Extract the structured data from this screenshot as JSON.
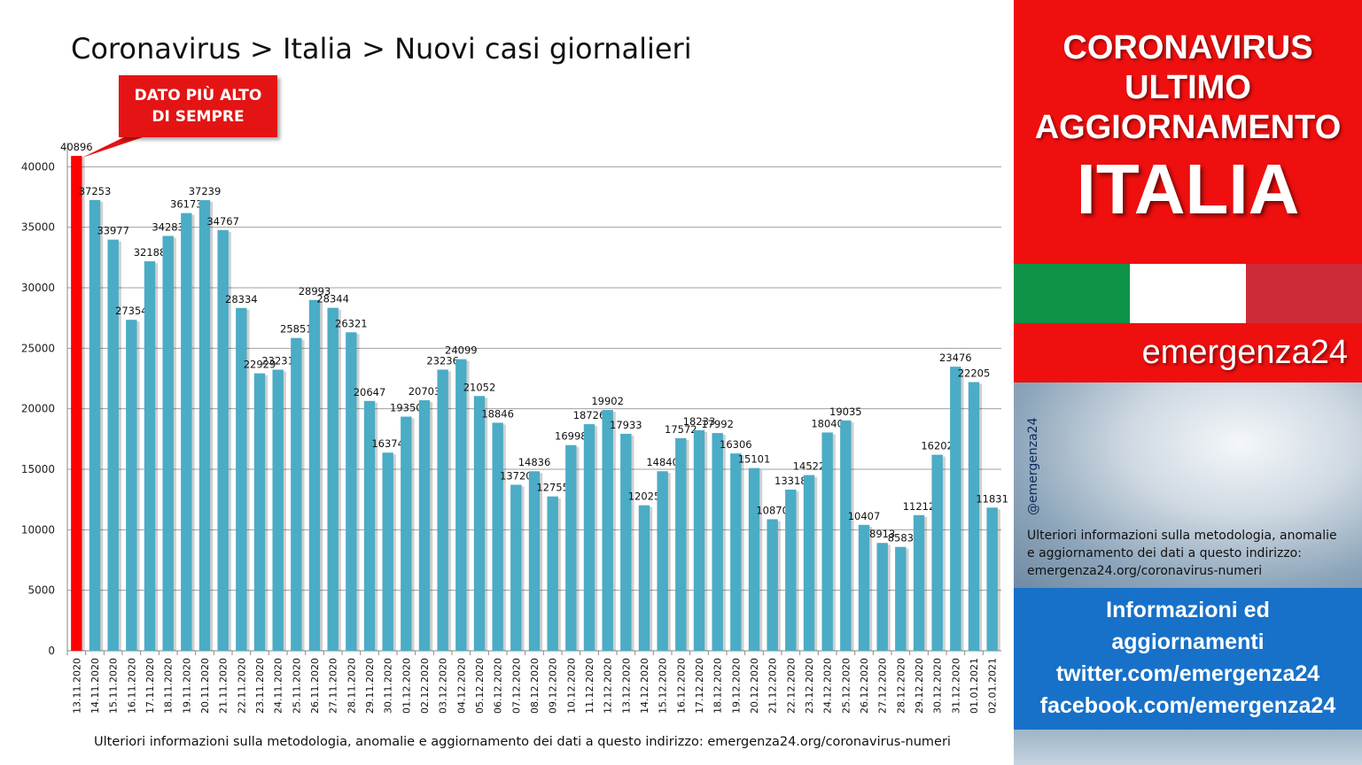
{
  "title": "Coronavirus > Italia > Nuovi casi giornalieri",
  "callout": {
    "line1": "DATO PIÙ ALTO",
    "line2": "DI SEMPRE"
  },
  "footnote": "Ulteriori informazioni sulla metodologia, anomalie e aggiornamento dei dati a questo indirizzo: emergenza24.org/coronavirus-numeri",
  "sidebar": {
    "line1": "CORONAVIRUS",
    "line2": "ULTIMO",
    "line3": "AGGIORNAMENTO",
    "country": "ITALIA",
    "brand": "emergenza24",
    "handle": "@emergenza24",
    "info": [
      "Ulteriori informazioni sulla metodologia, anomalie",
      "e aggiornamento dei dati a questo indirizzo:",
      "emergenza24.org/coronavirus-numeri"
    ],
    "links": [
      "Informazioni ed",
      "aggiornamenti",
      "twitter.com/emergenza24",
      "facebook.com/emergenza24"
    ]
  },
  "colors": {
    "bar": "#4bacc6",
    "highlight": "#ff0000",
    "red_panel": "#ef0f0f",
    "blue_panel": "#1771c8",
    "flag_green": "#0e9347",
    "flag_white": "#ffffff",
    "flag_red": "#cd2b37"
  },
  "chart_data": {
    "type": "bar",
    "categories": [
      "13.11.2020",
      "14.11.2020",
      "15.11.2020",
      "16.11.2020",
      "17.11.2020",
      "18.11.2020",
      "19.11.2020",
      "20.11.2020",
      "21.11.2020",
      "22.11.2020",
      "23.11.2020",
      "24.11.2020",
      "25.11.2020",
      "26.11.2020",
      "27.11.2020",
      "28.11.2020",
      "29.11.2020",
      "30.11.2020",
      "01.12.2020",
      "02.12.2020",
      "03.12.2020",
      "04.12.2020",
      "05.12.2020",
      "06.12.2020",
      "07.12.2020",
      "08.12.2020",
      "09.12.2020",
      "10.12.2020",
      "11.12.2020",
      "12.12.2020",
      "13.12.2020",
      "14.12.2020",
      "15.12.2020",
      "16.12.2020",
      "17.12.2020",
      "18.12.2020",
      "19.12.2020",
      "20.12.2020",
      "21.12.2020",
      "22.12.2020",
      "23.12.2020",
      "24.12.2020",
      "25.12.2020",
      "26.12.2020",
      "27.12.2020",
      "28.12.2020",
      "29.12.2020",
      "30.12.2020",
      "31.12.2020",
      "01.01.2021",
      "02.01.2021"
    ],
    "values": [
      40896,
      37253,
      33977,
      27354,
      32188,
      34283,
      36173,
      37239,
      34767,
      28334,
      22929,
      23231,
      25851,
      28993,
      28344,
      26321,
      20647,
      16374,
      19350,
      20703,
      23236,
      24099,
      21052,
      18846,
      13720,
      14836,
      12755,
      16998,
      18726,
      19902,
      17933,
      12025,
      14840,
      17572,
      18233,
      17992,
      16306,
      15101,
      10870,
      13318,
      14522,
      18040,
      19035,
      10407,
      8913,
      8583,
      11212,
      16202,
      23476,
      22205,
      11831
    ],
    "highlight_index": 0,
    "yticks": [
      0,
      5000,
      10000,
      15000,
      20000,
      25000,
      30000,
      35000,
      40000
    ],
    "ylim": [
      0,
      40896
    ],
    "grid": true,
    "legend": "none"
  }
}
